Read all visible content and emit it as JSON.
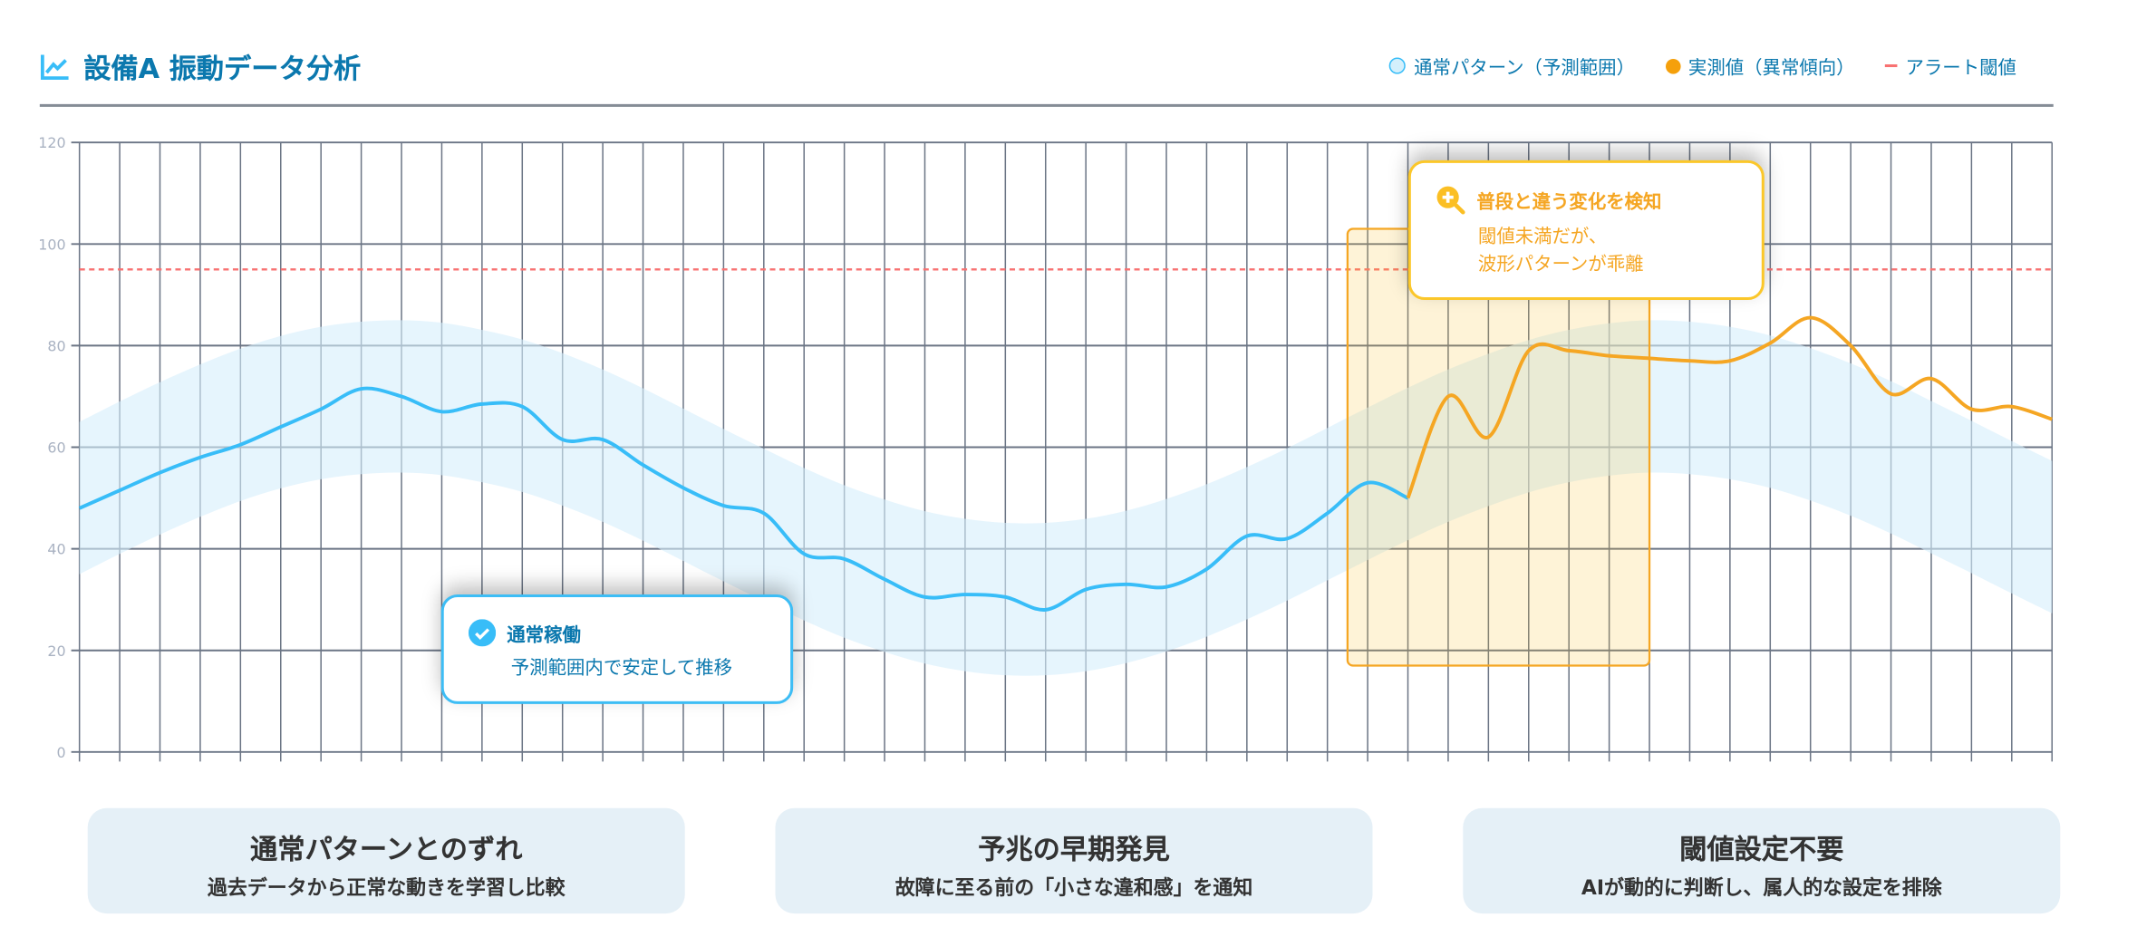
{
  "header": {
    "title": "設備A 振動データ分析",
    "legend": [
      {
        "label": "通常パターン（予測範囲）",
        "icon": "circle-outline",
        "color": "#38bdf8"
      },
      {
        "label": "実測値（異常傾向）",
        "icon": "circle-filled",
        "color": "#f59e0b"
      },
      {
        "label": "アラート閾値",
        "icon": "dash",
        "color": "#f87171"
      }
    ]
  },
  "chart_data": {
    "type": "line",
    "title": "設備A 振動データ分析",
    "xlabel": "",
    "ylabel": "",
    "ylim": [
      0,
      120
    ],
    "yticks": [
      "0",
      "20",
      "40",
      "60",
      "80",
      "100",
      "120"
    ],
    "x_count": 50,
    "grid": true,
    "legend_position": "top-right",
    "alert_threshold": 95,
    "expected_center": [
      50,
      54,
      57.8,
      61.3,
      64.4,
      66.9,
      68.7,
      69.7,
      70,
      69.5,
      68.1,
      66.2,
      63.5,
      60.3,
      56.6,
      52.6,
      48.6,
      44.7,
      40.9,
      37.5,
      34.7,
      32.4,
      30.9,
      30.1,
      30.1,
      30.9,
      32.5,
      34.8,
      37.7,
      41.1,
      44.8,
      48.8,
      52.8,
      56.7,
      60.3,
      63.4,
      66.1,
      68.1,
      69.4,
      70,
      69.7,
      68.7,
      67,
      64.5,
      61.5,
      58,
      54.1,
      50.2,
      46.2,
      42.3
    ],
    "band_halfwidth": 15,
    "series": [
      {
        "name": "通常パターン（予測範囲）",
        "color": "#38bdf8",
        "start_index": 0,
        "values": [
          48,
          51.5,
          55,
          58,
          60.5,
          64,
          67.5,
          71.5,
          70,
          67,
          68.5,
          68,
          61.5,
          61.5,
          56.5,
          52,
          48.5,
          47,
          39,
          38,
          34,
          30.5,
          31,
          30.5,
          28,
          32,
          33,
          32.5,
          36,
          42.5,
          42,
          47,
          53,
          50
        ]
      },
      {
        "name": "実測値（異常傾向）",
        "color": "#f5a623",
        "start_index": 33,
        "values": [
          50,
          70,
          62,
          79,
          79,
          78,
          77.5,
          77,
          77,
          80.5,
          85.5,
          80,
          70.5,
          73.5,
          67.5,
          68,
          65.5
        ]
      }
    ],
    "highlight_range": {
      "x_from_index": 31.5,
      "x_to_index": 39,
      "y_from": 17,
      "y_to": 103
    }
  },
  "callouts": {
    "anomaly": {
      "title": "普段と違う変化を検知",
      "line1": "閾値未満だが、",
      "line2": "波形パターンが乖離"
    },
    "normal": {
      "title": "通常稼働",
      "body": "予測範囲内で安定して推移"
    }
  },
  "cards": [
    {
      "title": "通常パターンとのずれ",
      "subtitle": "過去データから正常な動きを学習し比較"
    },
    {
      "title": "予兆の早期発見",
      "subtitle": "故障に至る前の「小さな違和感」を通知"
    },
    {
      "title": "閾値設定不要",
      "subtitle": "AIが動的に判断し、属人的な設定を排除"
    }
  ]
}
